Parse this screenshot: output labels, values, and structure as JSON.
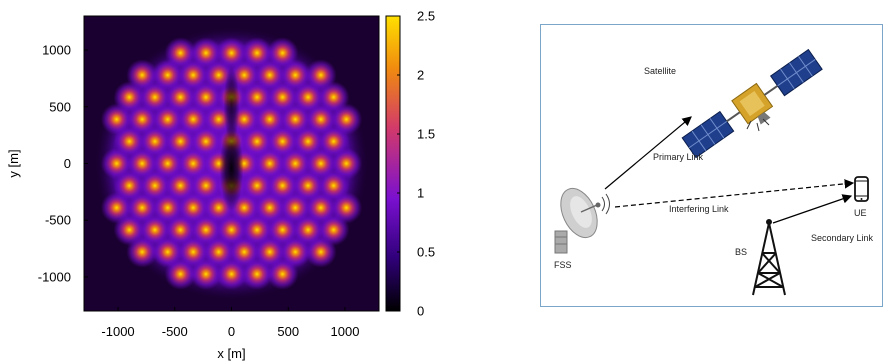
{
  "chart_data": {
    "type": "heatmap",
    "title": "",
    "xlabel": "x [m]",
    "ylabel": "y [m]",
    "xlim": [
      -1300,
      1300
    ],
    "ylim": [
      -1300,
      1300
    ],
    "x_ticks": [
      -1000,
      -500,
      0,
      500,
      1000
    ],
    "x_tick_labels": [
      "-1000",
      "-500",
      "0",
      "500",
      "1000"
    ],
    "y_ticks": [
      1000,
      500,
      0,
      -500,
      -1000
    ],
    "y_tick_labels": [
      "1000",
      "500",
      "0",
      "-500",
      "-1000"
    ],
    "colorbar": {
      "range": [
        0,
        2.5
      ],
      "ticks": [
        2.5,
        2,
        1.5,
        1,
        0.5,
        0
      ],
      "tick_labels": [
        "2.5",
        "2",
        "1.5",
        "1",
        "0.5",
        "0"
      ],
      "colormap": [
        "#000000",
        "#30007a",
        "#7a10d0",
        "#d23a6a",
        "#f08a10",
        "#ffe000"
      ]
    },
    "grid": false,
    "hotspot_layout": {
      "pattern": "hexagonal grid of circular hotspots inside a disk",
      "hex_spacing_m": 225,
      "region_radius_m": 1130,
      "peak_value": 2.5,
      "quiet_zone": "central vertical strip near x = 0, darkest around the origin"
    }
  },
  "diagram": {
    "labels": {
      "satellite": "Satellite",
      "primary_link": "Primary Link",
      "interfering_link": "Interfering Link",
      "secondary_link": "Secondary Link",
      "fss": "FSS",
      "bs": "BS",
      "ue": "UE"
    }
  }
}
